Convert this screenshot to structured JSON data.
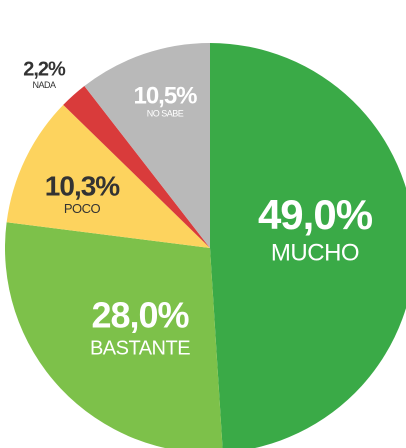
{
  "chart_data": {
    "type": "pie",
    "categories": [
      "MUCHO",
      "BASTANTE",
      "POCO",
      "NADA",
      "NO SABE"
    ],
    "values": [
      49.0,
      28.0,
      10.3,
      2.2,
      10.5
    ],
    "value_labels": [
      "49,0%",
      "28,0%",
      "10,3%",
      "2,2%",
      "10,5%"
    ],
    "colors": [
      "#3aaa47",
      "#7dc14a",
      "#fdd35e",
      "#d93b3b",
      "#b9b9b9"
    ]
  }
}
